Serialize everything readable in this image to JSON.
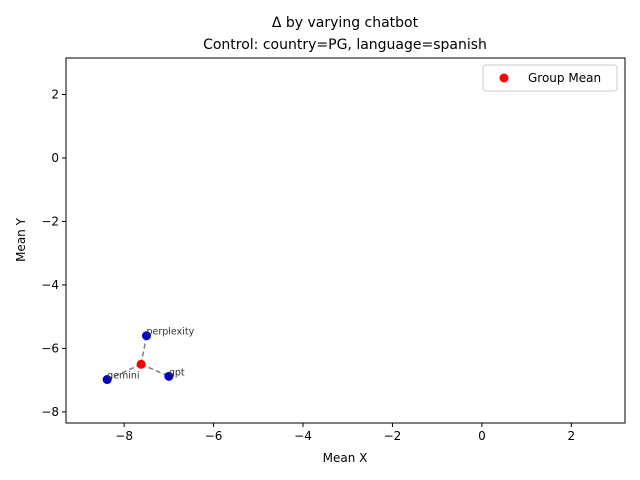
{
  "chart_data": {
    "type": "scatter",
    "title": "Δ by varying chatbot",
    "subtitle": "Control: country=PG, language=spanish",
    "xlabel": "Mean X",
    "ylabel": "Mean Y",
    "xlim": [
      -9.3,
      3.2
    ],
    "ylim": [
      -8.35,
      3.15
    ],
    "xticks": [
      -8,
      -6,
      -4,
      -2,
      0,
      2
    ],
    "yticks": [
      -8,
      -6,
      -4,
      -2,
      0,
      2
    ],
    "xtick_labels": [
      "−8",
      "−6",
      "−4",
      "−2",
      "0",
      "2"
    ],
    "ytick_labels": [
      "−8",
      "−6",
      "−4",
      "−2",
      "0",
      "2"
    ],
    "grid": false,
    "legend_position": "top-right",
    "legend": [
      {
        "label": "Group Mean",
        "color": "#ff0000"
      }
    ],
    "group_mean": {
      "x": -7.62,
      "y": -6.5,
      "color": "#ff0000"
    },
    "points": [
      {
        "label": "perplexity",
        "x": -7.5,
        "y": -5.6,
        "color": "#0000cd"
      },
      {
        "label": "gemini",
        "x": -8.38,
        "y": -6.98,
        "color": "#0000cd"
      },
      {
        "label": "gpt",
        "x": -7.0,
        "y": -6.88,
        "color": "#0000cd"
      }
    ],
    "connector_style": {
      "color": "#808080",
      "dashed": true
    }
  }
}
